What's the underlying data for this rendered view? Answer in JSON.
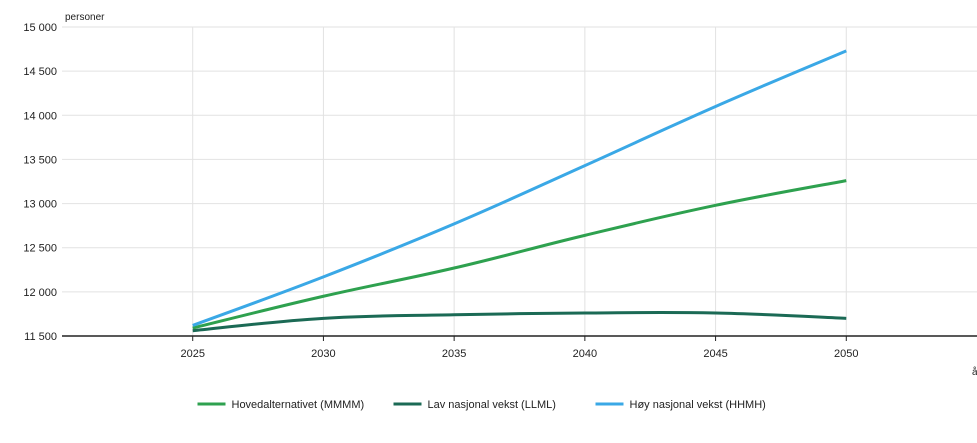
{
  "chart_data": {
    "type": "line",
    "y_unit_label": "personer",
    "x_unit_label": "år",
    "x": [
      2025,
      2030,
      2035,
      2040,
      2045,
      2050
    ],
    "xlim": [
      2020,
      2055
    ],
    "ylim": [
      11500,
      15000
    ],
    "y_ticks": [
      11500,
      12000,
      12500,
      13000,
      13500,
      14000,
      14500,
      15000
    ],
    "y_tick_labels": [
      "11 500",
      "12 000",
      "12 500",
      "13 000",
      "13 500",
      "14 000",
      "14 500",
      "15 000"
    ],
    "x_tick_labels": [
      "2025",
      "2030",
      "2035",
      "2040",
      "2045",
      "2050"
    ],
    "grid": true,
    "legend_position": "bottom-center",
    "series": [
      {
        "name": "Hovedalternativet (MMMM)",
        "color": "#2ea14f",
        "values": [
          11590,
          11950,
          12270,
          12640,
          12980,
          13260
        ]
      },
      {
        "name": "Lav nasjonal vekst (LLML)",
        "color": "#1b6a55",
        "values": [
          11560,
          11700,
          11740,
          11760,
          11760,
          11700
        ]
      },
      {
        "name": "Høy nasjonal vekst (HHMH)",
        "color": "#3aa8e6",
        "values": [
          11620,
          12170,
          12770,
          13430,
          14100,
          14730
        ]
      }
    ]
  }
}
